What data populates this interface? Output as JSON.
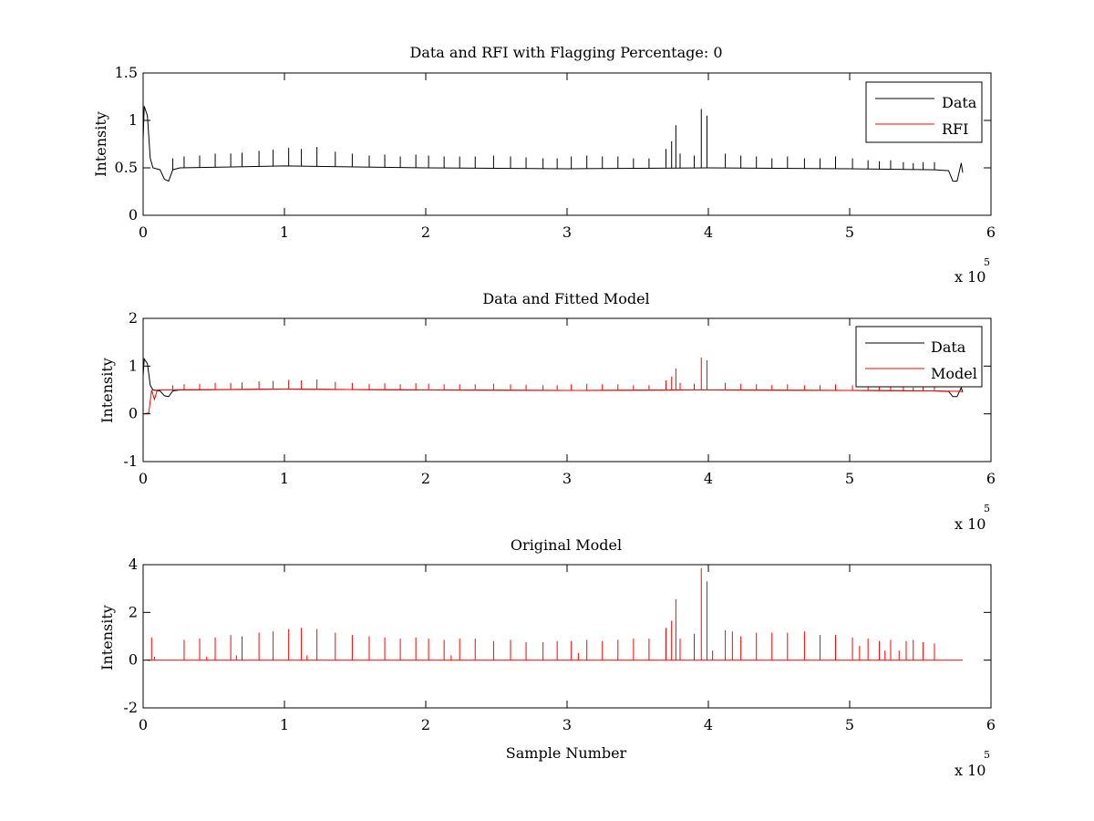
{
  "chart_data": [
    {
      "type": "line",
      "title": "Data and RFI with Flagging Percentage: 0",
      "xlabel": "",
      "ylabel": "Intensity",
      "xlim": [
        0,
        6
      ],
      "ylim": [
        0,
        1.5
      ],
      "x_multiplier_base": "x 10",
      "x_multiplier_exponent": "5",
      "xticks": [
        0,
        1,
        2,
        3,
        4,
        5,
        6
      ],
      "xtick_labels": [
        "0",
        "1",
        "2",
        "3",
        "4",
        "5",
        "6"
      ],
      "yticks": [
        0,
        0.5,
        1,
        1.5
      ],
      "ytick_labels": [
        "0",
        "0.5",
        "1",
        "1.5"
      ],
      "legend_position": "top-right",
      "grid": false,
      "series": [
        {
          "name": "Data",
          "color": "#000000",
          "baseline": 0.5,
          "points": [
            [
              0,
              0.8
            ],
            [
              0.008,
              1.15
            ],
            [
              0.03,
              1.05
            ],
            [
              0.05,
              0.6
            ],
            [
              0.07,
              0.5
            ],
            [
              0.12,
              0.48
            ],
            [
              0.15,
              0.38
            ],
            [
              0.18,
              0.36
            ],
            [
              0.21,
              0.48
            ],
            [
              0.26,
              0.5
            ],
            [
              1.0,
              0.52
            ],
            [
              2.0,
              0.5
            ],
            [
              3.0,
              0.49
            ],
            [
              4.0,
              0.5
            ],
            [
              5.0,
              0.49
            ],
            [
              5.6,
              0.48
            ],
            [
              5.7,
              0.47
            ],
            [
              5.73,
              0.36
            ],
            [
              5.76,
              0.36
            ],
            [
              5.79,
              0.55
            ],
            [
              5.8,
              0.45
            ]
          ],
          "spikes": [
            [
              0.21,
              0.6
            ],
            [
              0.29,
              0.62
            ],
            [
              0.4,
              0.63
            ],
            [
              0.51,
              0.65
            ],
            [
              0.62,
              0.65
            ],
            [
              0.7,
              0.66
            ],
            [
              0.82,
              0.68
            ],
            [
              0.92,
              0.69
            ],
            [
              1.03,
              0.71
            ],
            [
              1.12,
              0.7
            ],
            [
              1.23,
              0.72
            ],
            [
              1.36,
              0.67
            ],
            [
              1.48,
              0.65
            ],
            [
              1.6,
              0.63
            ],
            [
              1.71,
              0.64
            ],
            [
              1.82,
              0.62
            ],
            [
              1.93,
              0.64
            ],
            [
              2.02,
              0.63
            ],
            [
              2.13,
              0.62
            ],
            [
              2.24,
              0.62
            ],
            [
              2.35,
              0.62
            ],
            [
              2.48,
              0.63
            ],
            [
              2.6,
              0.62
            ],
            [
              2.71,
              0.61
            ],
            [
              2.83,
              0.6
            ],
            [
              2.93,
              0.6
            ],
            [
              3.03,
              0.62
            ],
            [
              3.14,
              0.63
            ],
            [
              3.25,
              0.62
            ],
            [
              3.36,
              0.62
            ],
            [
              3.47,
              0.6
            ],
            [
              3.58,
              0.6
            ],
            [
              3.7,
              0.7
            ],
            [
              3.74,
              0.78
            ],
            [
              3.77,
              0.95
            ],
            [
              3.8,
              0.65
            ],
            [
              3.9,
              0.63
            ],
            [
              3.95,
              1.12
            ],
            [
              3.99,
              1.05
            ],
            [
              4.12,
              0.65
            ],
            [
              4.23,
              0.63
            ],
            [
              4.34,
              0.62
            ],
            [
              4.45,
              0.6
            ],
            [
              4.56,
              0.62
            ],
            [
              4.68,
              0.6
            ],
            [
              4.79,
              0.6
            ],
            [
              4.9,
              0.62
            ],
            [
              5.02,
              0.6
            ],
            [
              5.13,
              0.58
            ],
            [
              5.21,
              0.57
            ],
            [
              5.29,
              0.58
            ],
            [
              5.38,
              0.56
            ],
            [
              5.45,
              0.55
            ],
            [
              5.52,
              0.56
            ],
            [
              5.6,
              0.56
            ]
          ]
        },
        {
          "name": "RFI",
          "color": "#ff0000",
          "points": [],
          "spikes": []
        }
      ]
    },
    {
      "type": "line",
      "title": "Data and Fitted Model",
      "xlabel": "",
      "ylabel": "Intensity",
      "xlim": [
        0,
        6
      ],
      "ylim": [
        -1,
        2
      ],
      "x_multiplier_base": "x 10",
      "x_multiplier_exponent": "5",
      "xticks": [
        0,
        1,
        2,
        3,
        4,
        5,
        6
      ],
      "xtick_labels": [
        "0",
        "1",
        "2",
        "3",
        "4",
        "5",
        "6"
      ],
      "yticks": [
        -1,
        0,
        1,
        2
      ],
      "ytick_labels": [
        "-1",
        "0",
        "1",
        "2"
      ],
      "legend_position": "top-right",
      "grid": false,
      "series": [
        {
          "name": "Data",
          "color": "#000000",
          "points": [
            [
              0,
              0.8
            ],
            [
              0.008,
              1.15
            ],
            [
              0.03,
              1.05
            ],
            [
              0.05,
              0.6
            ],
            [
              0.07,
              0.5
            ],
            [
              0.12,
              0.48
            ],
            [
              0.15,
              0.38
            ],
            [
              0.18,
              0.36
            ],
            [
              0.21,
              0.48
            ],
            [
              0.26,
              0.5
            ],
            [
              1.0,
              0.52
            ],
            [
              2.0,
              0.5
            ],
            [
              3.0,
              0.49
            ],
            [
              4.0,
              0.5
            ],
            [
              5.0,
              0.49
            ],
            [
              5.6,
              0.48
            ],
            [
              5.7,
              0.47
            ],
            [
              5.73,
              0.36
            ],
            [
              5.76,
              0.36
            ],
            [
              5.79,
              0.55
            ],
            [
              5.8,
              0.45
            ]
          ],
          "spikes": []
        },
        {
          "name": "Model",
          "color": "#ff0000",
          "points": [
            [
              0,
              0.0
            ],
            [
              0.04,
              0.02
            ],
            [
              0.06,
              0.5
            ],
            [
              0.08,
              0.3
            ],
            [
              0.1,
              0.5
            ],
            [
              1.0,
              0.52
            ],
            [
              2.0,
              0.5
            ],
            [
              3.0,
              0.49
            ],
            [
              4.0,
              0.5
            ],
            [
              5.0,
              0.49
            ],
            [
              5.6,
              0.48
            ],
            [
              5.8,
              0.47
            ]
          ],
          "spikes": [
            [
              0.21,
              0.6
            ],
            [
              0.29,
              0.62
            ],
            [
              0.4,
              0.63
            ],
            [
              0.51,
              0.65
            ],
            [
              0.62,
              0.65
            ],
            [
              0.7,
              0.66
            ],
            [
              0.82,
              0.68
            ],
            [
              0.92,
              0.69
            ],
            [
              1.03,
              0.71
            ],
            [
              1.12,
              0.7
            ],
            [
              1.23,
              0.72
            ],
            [
              1.36,
              0.67
            ],
            [
              1.48,
              0.65
            ],
            [
              1.6,
              0.63
            ],
            [
              1.71,
              0.64
            ],
            [
              1.82,
              0.62
            ],
            [
              1.93,
              0.64
            ],
            [
              2.02,
              0.63
            ],
            [
              2.13,
              0.62
            ],
            [
              2.24,
              0.62
            ],
            [
              2.35,
              0.62
            ],
            [
              2.48,
              0.63
            ],
            [
              2.6,
              0.62
            ],
            [
              2.71,
              0.61
            ],
            [
              2.83,
              0.6
            ],
            [
              2.93,
              0.6
            ],
            [
              3.03,
              0.62
            ],
            [
              3.14,
              0.63
            ],
            [
              3.25,
              0.62
            ],
            [
              3.36,
              0.62
            ],
            [
              3.47,
              0.6
            ],
            [
              3.58,
              0.6
            ],
            [
              3.7,
              0.7
            ],
            [
              3.74,
              0.78
            ],
            [
              3.77,
              0.95
            ],
            [
              3.8,
              0.65
            ],
            [
              3.9,
              0.63
            ],
            [
              3.95,
              1.18
            ],
            [
              3.99,
              1.12
            ],
            [
              4.12,
              0.65
            ],
            [
              4.23,
              0.63
            ],
            [
              4.34,
              0.62
            ],
            [
              4.45,
              0.6
            ],
            [
              4.56,
              0.62
            ],
            [
              4.68,
              0.6
            ],
            [
              4.79,
              0.6
            ],
            [
              4.9,
              0.62
            ],
            [
              5.02,
              0.6
            ],
            [
              5.13,
              0.58
            ],
            [
              5.21,
              0.57
            ],
            [
              5.29,
              0.58
            ],
            [
              5.38,
              0.56
            ],
            [
              5.45,
              0.55
            ],
            [
              5.52,
              0.56
            ],
            [
              5.6,
              0.56
            ]
          ]
        }
      ]
    },
    {
      "type": "line",
      "title": "Original Model",
      "xlabel": "Sample Number",
      "ylabel": "Intensity",
      "xlim": [
        0,
        6
      ],
      "ylim": [
        -2,
        4
      ],
      "x_multiplier_base": "x 10",
      "x_multiplier_exponent": "5",
      "xticks": [
        0,
        1,
        2,
        3,
        4,
        5,
        6
      ],
      "xtick_labels": [
        "0",
        "1",
        "2",
        "3",
        "4",
        "5",
        "6"
      ],
      "yticks": [
        -2,
        0,
        2,
        4
      ],
      "ytick_labels": [
        "-2",
        "0",
        "2",
        "4"
      ],
      "grid": false,
      "series": [
        {
          "color": "#ff0000",
          "points": [
            [
              0.03,
              0.0
            ],
            [
              5.8,
              0.0
            ]
          ],
          "spikes": [
            [
              0.06,
              0.95
            ],
            [
              0.08,
              0.15
            ],
            [
              0.29,
              0.85
            ],
            [
              0.4,
              0.9
            ],
            [
              0.45,
              0.15
            ],
            [
              0.51,
              0.95
            ],
            [
              0.62,
              1.05
            ],
            [
              0.66,
              0.2
            ],
            [
              0.7,
              1.0
            ],
            [
              0.82,
              1.15
            ],
            [
              0.92,
              1.2
            ],
            [
              1.03,
              1.3
            ],
            [
              1.12,
              1.35
            ],
            [
              1.16,
              0.2
            ],
            [
              1.23,
              1.3
            ],
            [
              1.36,
              1.15
            ],
            [
              1.48,
              1.05
            ],
            [
              1.6,
              1.0
            ],
            [
              1.71,
              0.95
            ],
            [
              1.82,
              0.9
            ],
            [
              1.93,
              0.95
            ],
            [
              2.02,
              0.9
            ],
            [
              2.13,
              0.85
            ],
            [
              2.18,
              0.2
            ],
            [
              2.24,
              0.9
            ],
            [
              2.35,
              0.9
            ],
            [
              2.48,
              0.8
            ],
            [
              2.6,
              0.85
            ],
            [
              2.71,
              0.75
            ],
            [
              2.83,
              0.75
            ],
            [
              2.93,
              0.8
            ],
            [
              3.03,
              0.8
            ],
            [
              3.08,
              0.3
            ],
            [
              3.14,
              0.85
            ],
            [
              3.25,
              0.8
            ],
            [
              3.36,
              0.85
            ],
            [
              3.47,
              0.9
            ],
            [
              3.58,
              0.9
            ],
            [
              3.7,
              1.35
            ],
            [
              3.74,
              1.65
            ],
            [
              3.77,
              2.55
            ],
            [
              3.8,
              0.9
            ],
            [
              3.9,
              1.1
            ],
            [
              3.95,
              3.85
            ],
            [
              3.99,
              3.3
            ],
            [
              4.03,
              0.4
            ],
            [
              4.12,
              1.25
            ],
            [
              4.17,
              1.2
            ],
            [
              4.23,
              1.0
            ],
            [
              4.34,
              1.15
            ],
            [
              4.45,
              1.15
            ],
            [
              4.56,
              1.15
            ],
            [
              4.68,
              1.2
            ],
            [
              4.79,
              1.05
            ],
            [
              4.9,
              1.05
            ],
            [
              5.02,
              0.95
            ],
            [
              5.07,
              0.6
            ],
            [
              5.13,
              0.9
            ],
            [
              5.21,
              0.8
            ],
            [
              5.25,
              0.4
            ],
            [
              5.29,
              0.85
            ],
            [
              5.35,
              0.4
            ],
            [
              5.4,
              0.8
            ],
            [
              5.45,
              0.85
            ],
            [
              5.52,
              0.75
            ],
            [
              5.6,
              0.7
            ]
          ]
        }
      ]
    }
  ]
}
